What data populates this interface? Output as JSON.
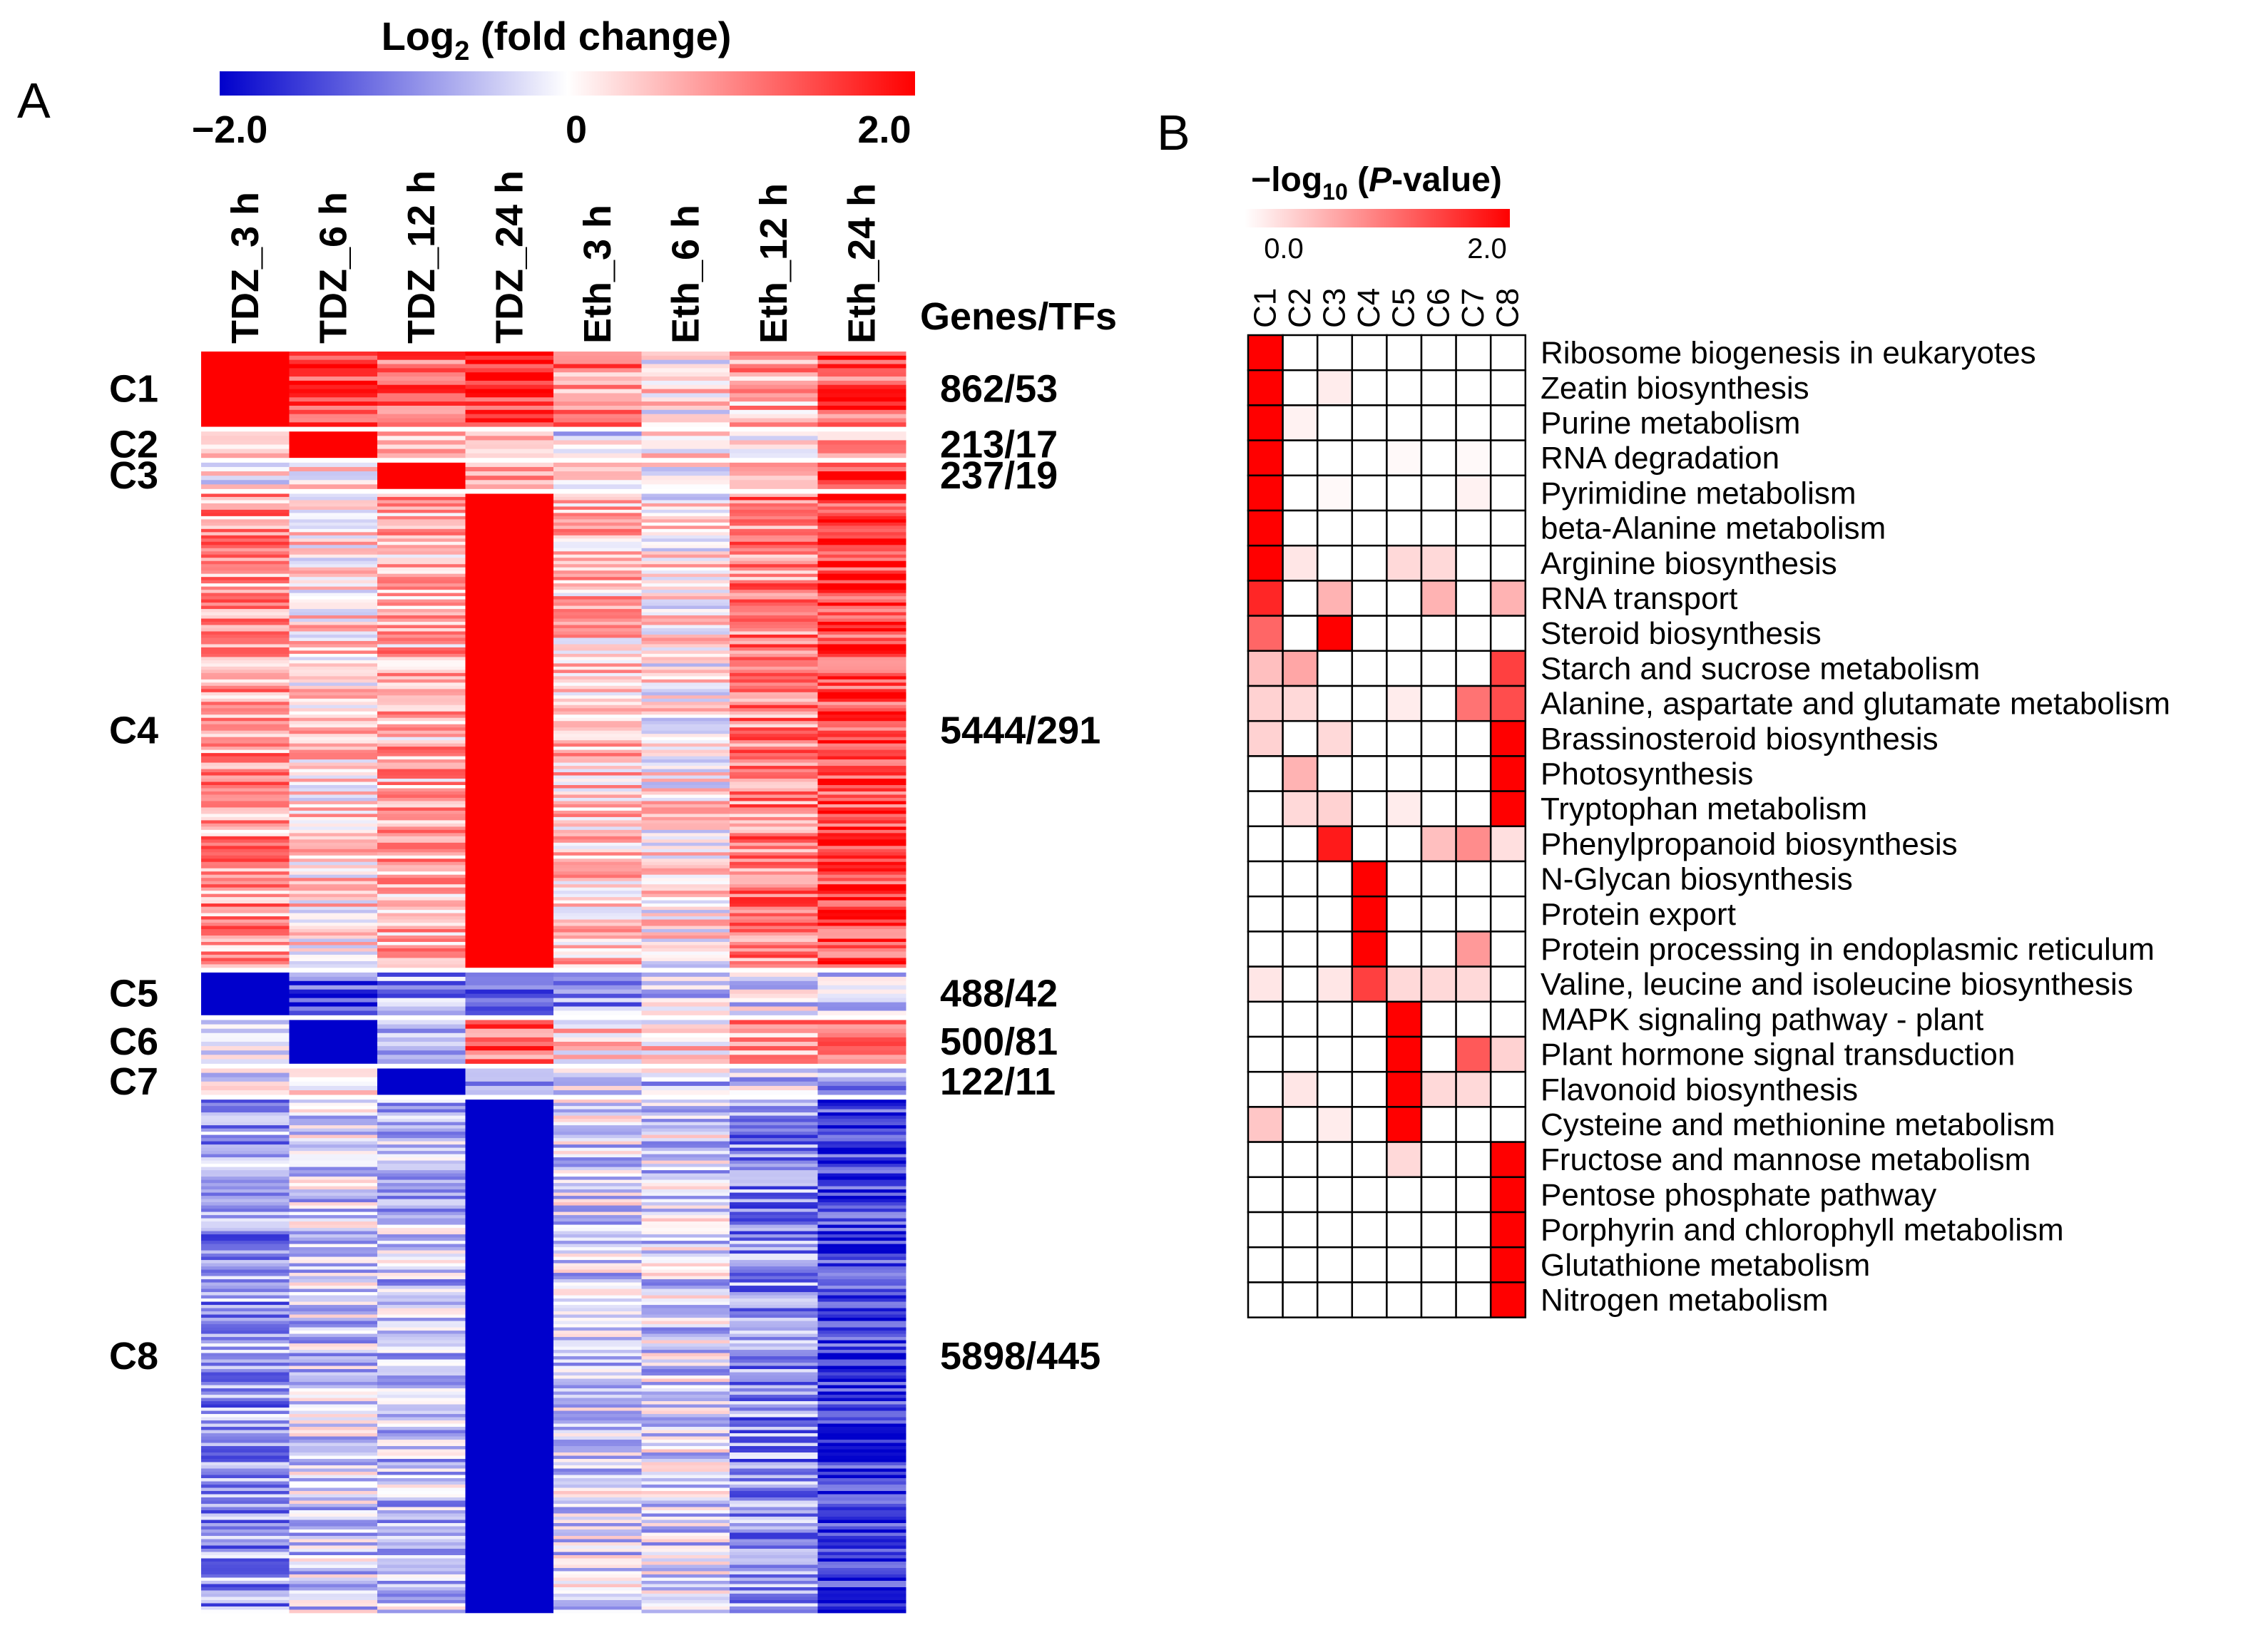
{
  "panel_a": {
    "letter": "A",
    "legend": {
      "title_prefix": "Log",
      "title_sub": "2",
      "title_suffix": " (fold change)",
      "min_label": "−2.0",
      "mid_label": "0",
      "max_label": "2.0",
      "min_color": "#0000cc",
      "mid_color": "#ffffff",
      "max_color": "#ff0000"
    },
    "genes_tfs_header": "Genes/TFs"
  },
  "panel_b": {
    "letter": "B",
    "legend": {
      "title_prefix": "−log",
      "title_sub": "10",
      "title_paren_open": " (",
      "title_italic": "P",
      "title_suffix": "-value)",
      "min_label": "0.0",
      "max_label": "2.0",
      "min_color": "#ffffff",
      "max_color": "#ff0000"
    }
  },
  "chart_data": [
    {
      "type": "heatmap",
      "title": "Log2 (fold change)",
      "columns": [
        "TDZ_3 h",
        "TDZ_6 h",
        "TDZ_12 h",
        "TDZ_24 h",
        "Eth_3 h",
        "Eth_6 h",
        "Eth_12 h",
        "Eth_24 h"
      ],
      "value_range": [
        -2.0,
        2.0
      ],
      "clusters": [
        {
          "name": "C1",
          "genes_tfs": "862/53",
          "genes": 862,
          "tfs": 53,
          "means": [
            2.0,
            1.4,
            1.2,
            1.6,
            1.0,
            0.2,
            0.6,
            1.4
          ]
        },
        {
          "name": "C2",
          "genes_tfs": "213/17",
          "genes": 213,
          "tfs": 17,
          "means": [
            0.1,
            2.0,
            0.7,
            0.6,
            -0.3,
            0.2,
            0.4,
            0.8
          ]
        },
        {
          "name": "C3",
          "genes_tfs": "237/19",
          "genes": 237,
          "tfs": 19,
          "means": [
            0.0,
            0.0,
            2.0,
            0.7,
            0.3,
            0.2,
            0.6,
            1.3
          ]
        },
        {
          "name": "C4",
          "genes_tfs": "5444/291",
          "genes": 5444,
          "tfs": 291,
          "means": [
            0.8,
            0.3,
            0.6,
            2.0,
            0.5,
            0.15,
            1.0,
            1.5
          ]
        },
        {
          "name": "C5",
          "genes_tfs": "488/42",
          "genes": 488,
          "tfs": 42,
          "means": [
            -2.0,
            -1.2,
            -0.8,
            -0.9,
            -0.8,
            -0.3,
            -0.3,
            -0.6
          ]
        },
        {
          "name": "C6",
          "genes_tfs": "500/81",
          "genes": 500,
          "tfs": 81,
          "means": [
            0.0,
            -2.0,
            -0.4,
            1.1,
            0.3,
            0.2,
            0.9,
            0.9
          ]
        },
        {
          "name": "C7",
          "genes_tfs": "122/11",
          "genes": 122,
          "tfs": 11,
          "means": [
            0.0,
            0.0,
            -2.0,
            -0.9,
            -0.3,
            -0.4,
            -0.4,
            -0.6
          ]
        },
        {
          "name": "C8",
          "genes_tfs": "5898/445",
          "genes": 5898,
          "tfs": 445,
          "means": [
            -0.8,
            -0.35,
            -0.45,
            -2.0,
            -0.3,
            -0.3,
            -0.9,
            -1.6
          ]
        }
      ]
    },
    {
      "type": "heatmap",
      "title": "−log10 (P-value)",
      "columns": [
        "C1",
        "C2",
        "C3",
        "C4",
        "C5",
        "C6",
        "C7",
        "C8"
      ],
      "value_range": [
        0.0,
        2.0
      ],
      "rows": [
        {
          "pathway": "Ribosome biogenesis in eukaryotes",
          "values": [
            2.0,
            0,
            0,
            0,
            0,
            0,
            0,
            0
          ]
        },
        {
          "pathway": "Zeatin biosynthesis",
          "values": [
            2.0,
            0,
            0.15,
            0,
            0,
            0,
            0,
            0
          ]
        },
        {
          "pathway": "Purine metabolism",
          "values": [
            2.0,
            0.1,
            0,
            0,
            0,
            0,
            0,
            0
          ]
        },
        {
          "pathway": "RNA degradation",
          "values": [
            2.0,
            0,
            0,
            0,
            0.05,
            0,
            0.05,
            0
          ]
        },
        {
          "pathway": "Pyrimidine metabolism",
          "values": [
            2.0,
            0,
            0.05,
            0,
            0,
            0,
            0.1,
            0
          ]
        },
        {
          "pathway": "beta-Alanine metabolism",
          "values": [
            2.0,
            0,
            0,
            0,
            0,
            0,
            0,
            0
          ]
        },
        {
          "pathway": "Arginine biosynthesis",
          "values": [
            2.0,
            0.2,
            0,
            0,
            0.3,
            0.3,
            0,
            0
          ]
        },
        {
          "pathway": "RNA transport",
          "values": [
            1.7,
            0,
            0.6,
            0,
            0,
            0.6,
            0,
            0.6
          ]
        },
        {
          "pathway": "Steroid biosynthesis",
          "values": [
            1.2,
            0,
            2.0,
            0,
            0,
            0,
            0,
            0
          ]
        },
        {
          "pathway": "Starch and sucrose metabolism",
          "values": [
            0.5,
            0.7,
            0,
            0,
            0,
            0,
            0,
            1.5
          ]
        },
        {
          "pathway": "Alanine, aspartate and glutamate metabolism",
          "values": [
            0.35,
            0.3,
            0,
            0,
            0.15,
            0,
            1.1,
            1.4
          ]
        },
        {
          "pathway": "Brassinosteroid biosynthesis",
          "values": [
            0.35,
            0,
            0.3,
            0,
            0,
            0,
            0,
            2.0
          ]
        },
        {
          "pathway": "Photosynthesis",
          "values": [
            0,
            0.6,
            0,
            0,
            0,
            0,
            0,
            2.0
          ]
        },
        {
          "pathway": "Tryptophan metabolism",
          "values": [
            0,
            0.3,
            0.35,
            0,
            0.15,
            0,
            0,
            2.0
          ]
        },
        {
          "pathway": "Phenylpropanoid biosynthesis",
          "values": [
            0,
            0,
            1.8,
            0,
            0,
            0.5,
            0.9,
            0.25
          ]
        },
        {
          "pathway": "N-Glycan biosynthesis",
          "values": [
            0,
            0,
            0,
            2.0,
            0,
            0,
            0,
            0
          ]
        },
        {
          "pathway": "Protein export",
          "values": [
            0,
            0,
            0,
            2.0,
            0,
            0,
            0,
            0
          ]
        },
        {
          "pathway": "Protein processing in endoplasmic reticulum",
          "values": [
            0,
            0,
            0,
            2.0,
            0,
            0,
            0.8,
            0
          ]
        },
        {
          "pathway": "Valine, leucine and isoleucine biosynthesis",
          "values": [
            0.2,
            0,
            0.2,
            1.5,
            0.3,
            0.3,
            0.3,
            0
          ]
        },
        {
          "pathway": "MAPK signaling pathway - plant",
          "values": [
            0,
            0,
            0,
            0,
            2.0,
            0,
            0,
            0
          ]
        },
        {
          "pathway": "Plant hormone signal transduction",
          "values": [
            0,
            0,
            0,
            0,
            2.0,
            0,
            1.3,
            0.35
          ]
        },
        {
          "pathway": "Flavonoid biosynthesis",
          "values": [
            0,
            0.2,
            0,
            0,
            2.0,
            0.3,
            0.3,
            0
          ]
        },
        {
          "pathway": "Cysteine and methionine metabolism",
          "values": [
            0.45,
            0,
            0.15,
            0,
            2.0,
            0,
            0,
            0
          ]
        },
        {
          "pathway": "Fructose and mannose metabolism",
          "values": [
            0,
            0,
            0,
            0,
            0.3,
            0,
            0,
            2.0
          ]
        },
        {
          "pathway": "Pentose phosphate pathway",
          "values": [
            0,
            0,
            0,
            0,
            0,
            0,
            0,
            2.0
          ]
        },
        {
          "pathway": "Porphyrin and chlorophyll metabolism",
          "values": [
            0,
            0,
            0,
            0,
            0,
            0,
            0,
            2.0
          ]
        },
        {
          "pathway": "Glutathione metabolism",
          "values": [
            0,
            0,
            0,
            0,
            0,
            0,
            0,
            2.0
          ]
        },
        {
          "pathway": "Nitrogen metabolism",
          "values": [
            0,
            0,
            0,
            0,
            0,
            0,
            0,
            2.0
          ]
        }
      ]
    }
  ]
}
